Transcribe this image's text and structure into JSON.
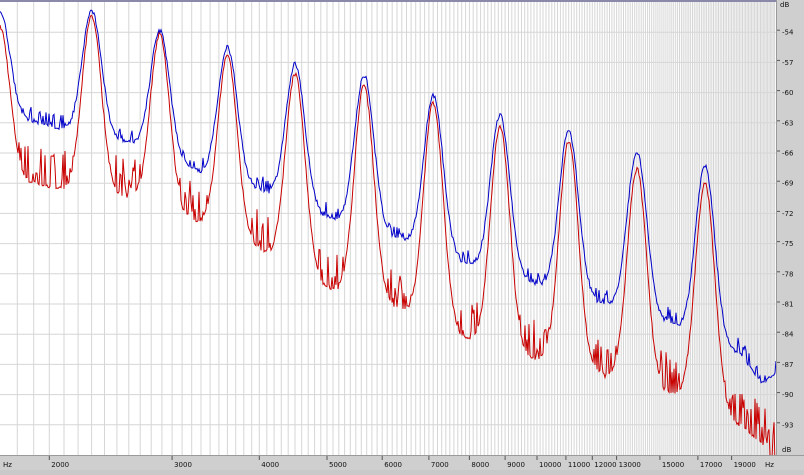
{
  "chart_data": {
    "type": "line",
    "x_scale": "log",
    "y_unit_label": "dB",
    "x_unit_label_left": "Hz",
    "x_unit_label_right": "Hz",
    "xlim": [
      1700,
      22000
    ],
    "ylim": [
      -96,
      -51
    ],
    "y_ticks": [
      -54,
      -57,
      -60,
      -63,
      -66,
      -69,
      -72,
      -75,
      -78,
      -81,
      -84,
      -87,
      -90,
      -93
    ],
    "x_tick_labels": [
      2000,
      3000,
      4000,
      5000,
      6000,
      7000,
      8000,
      9000,
      10000,
      11000,
      12000,
      13000,
      15000,
      17000,
      19000
    ],
    "grid": true,
    "peaks": [
      {
        "freq": 1700,
        "blue": -52.0,
        "red": -53.5
      },
      {
        "freq": 2300,
        "blue": -51.8,
        "red": -52.3
      },
      {
        "freq": 2880,
        "blue": -53.8,
        "red": -54.2
      },
      {
        "freq": 3600,
        "blue": -55.5,
        "red": -56.3
      },
      {
        "freq": 4500,
        "blue": -57.2,
        "red": -58.1
      },
      {
        "freq": 5650,
        "blue": -58.3,
        "red": -59.3
      },
      {
        "freq": 7100,
        "blue": -60.3,
        "red": -61.0
      },
      {
        "freq": 8850,
        "blue": -62.3,
        "red": -63.3
      },
      {
        "freq": 11100,
        "blue": -63.8,
        "red": -64.8
      },
      {
        "freq": 13900,
        "blue": -65.8,
        "red": -67.6
      },
      {
        "freq": 17400,
        "blue": -67.2,
        "red": -69.0
      }
    ],
    "series": [
      {
        "color": "#0000c8",
        "floor": [
          [
            1700,
            -62
          ],
          [
            2000,
            -63.5
          ],
          [
            2600,
            -65
          ],
          [
            3300,
            -68
          ],
          [
            4100,
            -70
          ],
          [
            5000,
            -72.5
          ],
          [
            6300,
            -74.5
          ],
          [
            7900,
            -77
          ],
          [
            9800,
            -79
          ],
          [
            12400,
            -81
          ],
          [
            15600,
            -83
          ],
          [
            17000,
            -84.5
          ],
          [
            19500,
            -86
          ],
          [
            21000,
            -89
          ],
          [
            22000,
            -88
          ]
        ],
        "noise": 1.6
      },
      {
        "color": "#c80000",
        "floor": [
          [
            1700,
            -68
          ],
          [
            2000,
            -69.5
          ],
          [
            2600,
            -70.5
          ],
          [
            3300,
            -73
          ],
          [
            4100,
            -76
          ],
          [
            5000,
            -79.5
          ],
          [
            6300,
            -81.5
          ],
          [
            7900,
            -84.5
          ],
          [
            9800,
            -86.5
          ],
          [
            12400,
            -88
          ],
          [
            15600,
            -90
          ],
          [
            17000,
            -90.5
          ],
          [
            19500,
            -93
          ],
          [
            21000,
            -95
          ],
          [
            22000,
            -97
          ]
        ],
        "noise": 2.6
      }
    ]
  }
}
